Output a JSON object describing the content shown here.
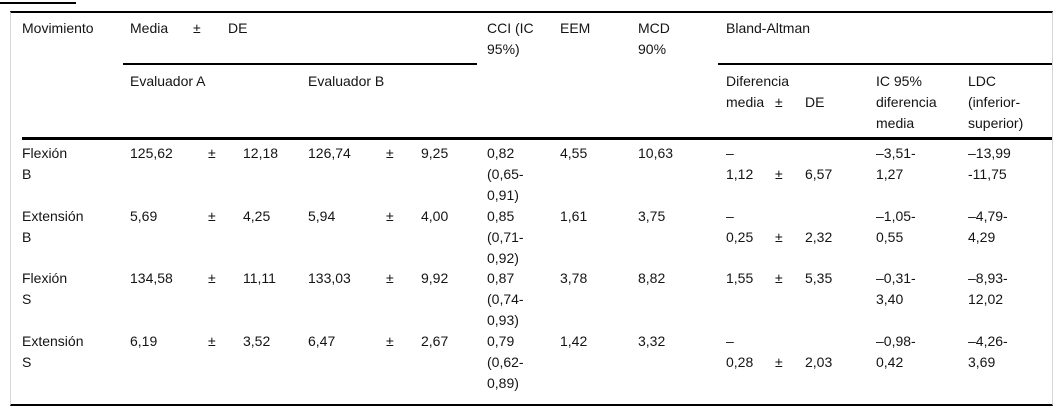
{
  "table": {
    "columns": {
      "movimiento": "Movimiento",
      "media_de": {
        "v1": "Media",
        "pm": "±",
        "v2": "DE"
      },
      "evaluador_a": "Evaluador A",
      "evaluador_b": "Evaluador B",
      "cci": [
        "CCI (IC",
        "95%)"
      ],
      "eem": "EEM",
      "mcd": [
        "MCD",
        "90%"
      ],
      "bland_altman": "Bland-Altman",
      "dif_media_l1": "Diferencia",
      "dif_media_l2": {
        "v1": "media",
        "pm": "±",
        "v2": "DE"
      },
      "ic95": [
        "IC 95%",
        "diferencia",
        "media"
      ],
      "ldc": [
        "LDC",
        "(inferior-",
        "superior)"
      ]
    },
    "rows": [
      {
        "movimiento": [
          "Flexión",
          "B"
        ],
        "eval_a": {
          "v1": "125,62",
          "pm": "±",
          "v2": "12,18"
        },
        "eval_b": {
          "v1": "126,74",
          "pm": "±",
          "v2": "9,25"
        },
        "cci": [
          "0,82",
          "(0,65-",
          "0,91)"
        ],
        "eem": "4,55",
        "mcd": "10,63",
        "dif_prefix": "–",
        "dif": {
          "v1": "1,12",
          "pm": "±",
          "v2": "6,57"
        },
        "ic95": [
          "–3,51-",
          "1,27"
        ],
        "ldc": [
          "–13,99",
          "-11,75"
        ]
      },
      {
        "movimiento": [
          "Extensión",
          "B"
        ],
        "eval_a": {
          "v1": "5,69",
          "pm": "±",
          "v2": "4,25"
        },
        "eval_b": {
          "v1": "5,94",
          "pm": "±",
          "v2": "4,00"
        },
        "cci": [
          "0,85",
          "(0,71-",
          "0,92)"
        ],
        "eem": "1,61",
        "mcd": "3,75",
        "dif_prefix": "–",
        "dif": {
          "v1": "0,25",
          "pm": "±",
          "v2": "2,32"
        },
        "ic95": [
          "–1,05-",
          "0,55"
        ],
        "ldc": [
          "–4,79-",
          "4,29"
        ]
      },
      {
        "movimiento": [
          "Flexión",
          "S"
        ],
        "eval_a": {
          "v1": "134,58",
          "pm": "±",
          "v2": "11,11"
        },
        "eval_b": {
          "v1": "133,03",
          "pm": "±",
          "v2": "9,92"
        },
        "cci": [
          "0,87",
          "(0,74-",
          "0,93)"
        ],
        "eem": "3,78",
        "mcd": "8,82",
        "dif": {
          "v1": "1,55",
          "pm": "±",
          "v2": "5,35"
        },
        "ic95": [
          "–0,31-",
          "3,40"
        ],
        "ldc": [
          "–8,93-",
          "12,02"
        ]
      },
      {
        "movimiento": [
          "Extensión",
          "S"
        ],
        "eval_a": {
          "v1": "6,19",
          "pm": "±",
          "v2": "3,52"
        },
        "eval_b": {
          "v1": "6,47",
          "pm": "±",
          "v2": "2,67"
        },
        "cci": [
          "0,79",
          "(0,62-",
          "0,89)"
        ],
        "eem": "1,42",
        "mcd": "3,32",
        "dif_prefix": "–",
        "dif": {
          "v1": "0,28",
          "pm": "±",
          "v2": "2,03"
        },
        "ic95": [
          "–0,98-",
          "0,42"
        ],
        "ldc": [
          "–4,26-",
          "3,69"
        ]
      }
    ]
  }
}
